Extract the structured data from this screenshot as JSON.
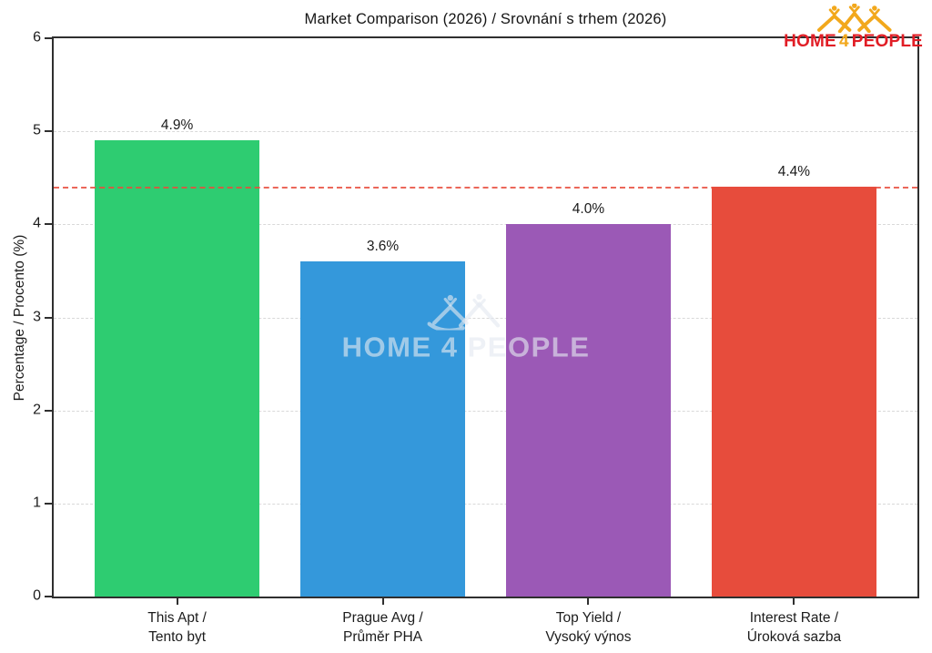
{
  "title": "Market Comparison (2026) / Srovnání s trhem (2026)",
  "y_axis": {
    "label": "Percentage / Procento (%)",
    "ticks": [
      0,
      1,
      2,
      3,
      4,
      5,
      6
    ],
    "max": 6
  },
  "chart_data": {
    "type": "bar",
    "title": "Market Comparison (2026) / Srovnání s trhem (2026)",
    "xlabel": "",
    "ylabel": "Percentage / Procento (%)",
    "ylim": [
      0,
      6
    ],
    "grid": "horizontal dashed light-gray, behind bars",
    "legend": "none",
    "categories": [
      "This Apt / Tento byt",
      "Prague Avg / Průměr PHA",
      "Top Yield / Vysoký výnos",
      "Interest Rate / Úroková sazba"
    ],
    "values": [
      4.9,
      3.6,
      4.0,
      4.4
    ],
    "value_labels": [
      "4.9%",
      "3.6%",
      "4.0%",
      "4.4%"
    ],
    "bar_colors": [
      "#2ecc71",
      "#3498db",
      "#9b59b6",
      "#e74c3c"
    ],
    "reference_line": {
      "value": 4.4,
      "color": "#e74c3c",
      "style": "dashed"
    }
  },
  "bars": [
    {
      "label_line1": "This Apt /",
      "label_line2": "Tento byt",
      "value": 4.9,
      "display": "4.9%",
      "color": "#2ecc71"
    },
    {
      "label_line1": "Prague Avg /",
      "label_line2": "Průměr PHA",
      "value": 3.6,
      "display": "3.6%",
      "color": "#3498db"
    },
    {
      "label_line1": "Top Yield /",
      "label_line2": "Vysoký výnos",
      "value": 4.0,
      "display": "4.0%",
      "color": "#9b59b6"
    },
    {
      "label_line1": "Interest Rate /",
      "label_line2": "Úroková sazba",
      "value": 4.4,
      "display": "4.4%",
      "color": "#e74c3c"
    }
  ],
  "logo": {
    "parts": [
      "HOME",
      "4",
      "PEOPLE"
    ],
    "text_color": "#e11e26",
    "accent_color": "#f2a81c"
  },
  "watermark": {
    "parts": [
      "HOME",
      "4",
      "PEOPLE"
    ]
  }
}
